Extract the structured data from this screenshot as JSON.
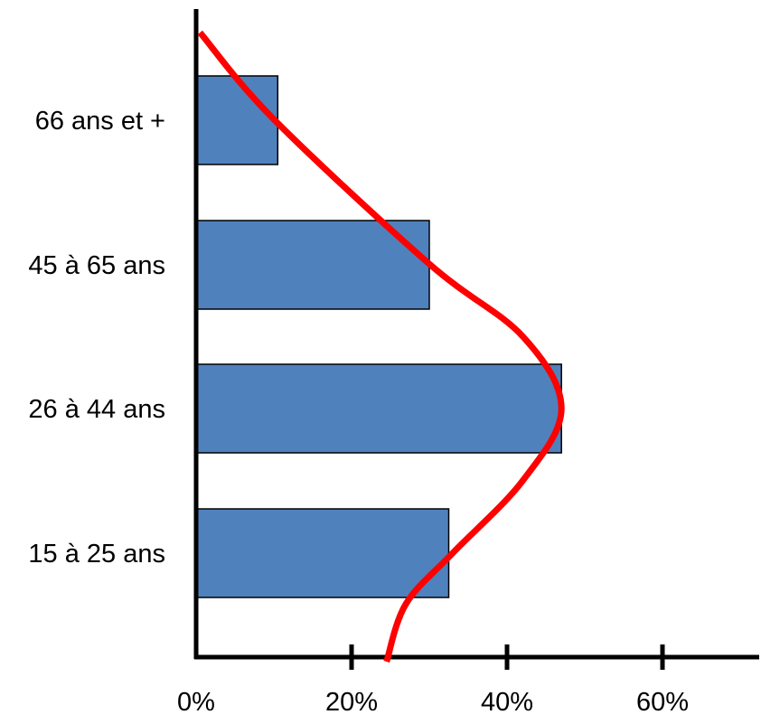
{
  "chart_data": {
    "type": "bar",
    "orientation": "horizontal",
    "categories": [
      "15 à 25 ans",
      "26 à 44 ans",
      "45 à 65 ans",
      "66 ans et +"
    ],
    "values": [
      32.5,
      47,
      30,
      10.5
    ],
    "x_ticks": [
      "0%",
      "20%",
      "40%",
      "60%"
    ],
    "x_tick_values": [
      0,
      20,
      40,
      60
    ],
    "xlim": [
      0,
      65
    ],
    "bar_color": "#4f81bd",
    "bar_stroke": "#000000",
    "curve_color": "#ff0000",
    "overlay": {
      "type": "smooth-curve",
      "points": [
        {
          "category_pos": -0.75,
          "value": 24.5
        },
        {
          "category_pos": -0.35,
          "value": 27
        },
        {
          "category_pos": 0,
          "value": 33
        },
        {
          "category_pos": 0.5,
          "value": 42
        },
        {
          "category_pos": 1,
          "value": 47
        },
        {
          "category_pos": 1.5,
          "value": 42
        },
        {
          "category_pos": 2,
          "value": 30
        },
        {
          "category_pos": 3,
          "value": 10
        },
        {
          "category_pos": 3.6,
          "value": 0.5
        }
      ]
    },
    "title": "",
    "xlabel": "",
    "ylabel": "",
    "grid": false,
    "legend": "none"
  }
}
